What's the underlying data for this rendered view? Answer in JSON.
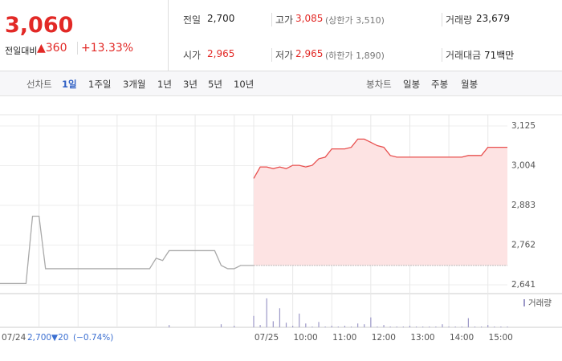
{
  "quote": {
    "price": "3,060",
    "change_label": "전일대비",
    "change": "▲360",
    "change_rate": "+13.33%"
  },
  "stats": [
    {
      "label": "전일",
      "value": "2,700"
    },
    {
      "label": "고가",
      "value": "3,085",
      "note": "(상한가 3,510)"
    },
    {
      "label": "거래량",
      "value": "23,679"
    },
    {
      "label": "시가",
      "value": "2,965"
    },
    {
      "label": "저가",
      "value": "2,965",
      "note": "(하한가 1,890)"
    },
    {
      "label": "거래대금",
      "value": "71백만"
    }
  ],
  "tabs": {
    "line_label": "선차트",
    "line_periods": [
      "1일",
      "1주일",
      "3개월",
      "1년",
      "3년",
      "5년",
      "10년"
    ],
    "candle_label": "봉차트",
    "candle_periods": [
      "일봉",
      "주봉",
      "월봉"
    ]
  },
  "chart_data": {
    "type": "line",
    "categories": [
      null,
      null,
      null,
      null,
      null,
      null,
      null,
      null,
      null,
      null,
      null,
      null,
      null,
      null,
      null,
      null,
      null,
      null,
      null,
      null,
      null,
      null,
      null,
      null,
      null,
      null,
      null,
      null,
      null,
      null,
      null,
      null,
      null,
      null,
      null,
      null,
      null,
      null,
      null,
      null,
      "07/25",
      null,
      null,
      null,
      null,
      null,
      "10:00",
      null,
      null,
      null,
      null,
      null,
      "11:00",
      null,
      null,
      null,
      null,
      null,
      "12:00",
      null,
      null,
      null,
      null,
      null,
      "13:00",
      null,
      null,
      null,
      null,
      null,
      "14:00",
      null,
      null,
      null,
      null,
      null,
      "15:00",
      null,
      null,
      null
    ],
    "series": [
      {
        "color": "#aaaaaa",
        "values": [
          2645,
          2645,
          2645,
          2645,
          2645,
          2850,
          2850,
          2690,
          2690,
          2690,
          2690,
          2690,
          2690,
          2690,
          2690,
          2690,
          2690,
          2690,
          2690,
          2690,
          2690,
          2690,
          2690,
          2690,
          2722,
          2715,
          2745,
          2745,
          2745,
          2745,
          2745,
          2745,
          2745,
          2745,
          2700,
          2690,
          2690,
          2700,
          2700,
          2700,
          null,
          null,
          null,
          null,
          null,
          null,
          null,
          null,
          null,
          null,
          null,
          null,
          null,
          null,
          null,
          null,
          null,
          null,
          null,
          null,
          null,
          null,
          null,
          null,
          null,
          null,
          null,
          null,
          null,
          null,
          null,
          null,
          null,
          null,
          null,
          null,
          null,
          null,
          null,
          null
        ]
      },
      {
        "color": "#e8504f",
        "area_color": "#fde3e3",
        "values": [
          null,
          null,
          null,
          null,
          null,
          null,
          null,
          null,
          null,
          null,
          null,
          null,
          null,
          null,
          null,
          null,
          null,
          null,
          null,
          null,
          null,
          null,
          null,
          null,
          null,
          null,
          null,
          null,
          null,
          null,
          null,
          null,
          null,
          null,
          null,
          null,
          null,
          null,
          null,
          null,
          2965,
          3000,
          3000,
          2995,
          3000,
          2995,
          3005,
          3005,
          3000,
          3005,
          3025,
          3030,
          3055,
          3055,
          3055,
          3060,
          3085,
          3085,
          3075,
          3065,
          3060,
          3035,
          3030,
          3030,
          3030,
          3030,
          3030,
          3030,
          3030,
          3030,
          3030,
          3030,
          3030,
          3035,
          3035,
          3035,
          3060,
          3060,
          3060,
          3060
        ]
      }
    ],
    "base_value": 2700,
    "ylim": [
      2641,
      3125
    ],
    "yticks": [
      {
        "value": 3125,
        "label": "3,125"
      },
      {
        "value": 3004,
        "label": "3,004"
      },
      {
        "value": 2883,
        "label": "2,883"
      },
      {
        "value": 2762,
        "label": "2,762"
      },
      {
        "value": 2641,
        "label": "2,641"
      }
    ],
    "volume": {
      "label": "거래량",
      "color": "#9c98c8",
      "ylim": [
        0,
        4000
      ],
      "values": [
        0,
        0,
        0,
        0,
        0,
        0,
        0,
        0,
        0,
        0,
        0,
        0,
        0,
        0,
        0,
        0,
        0,
        0,
        0,
        0,
        0,
        0,
        0,
        0,
        0,
        0,
        300,
        0,
        0,
        0,
        0,
        0,
        0,
        0,
        400,
        0,
        200,
        0,
        0,
        0,
        1500,
        300,
        3800,
        800,
        2500,
        600,
        200,
        1800,
        500,
        100,
        700,
        100,
        200,
        100,
        200,
        100,
        500,
        400,
        1300,
        100,
        300,
        100,
        100,
        100,
        200,
        100,
        100,
        100,
        100,
        400,
        100,
        100,
        100,
        1200,
        100,
        100,
        300,
        100,
        100,
        100
      ]
    },
    "prev_day": {
      "date": "07/24",
      "close": "2,700",
      "change": "▼20",
      "change_rate": "(−0.74%)"
    }
  }
}
